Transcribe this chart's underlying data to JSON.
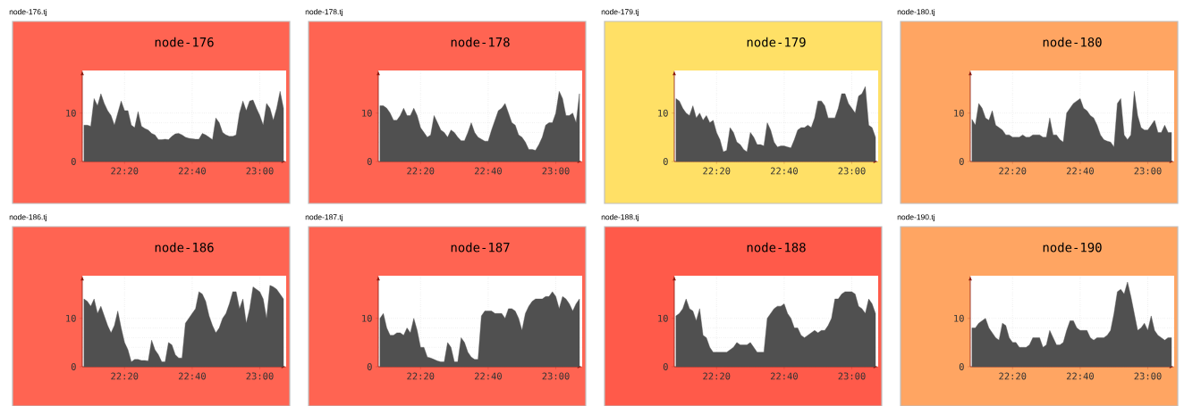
{
  "chart_data": [
    {
      "type": "area",
      "title": "node-176",
      "annotations": [
        "node-176.tj"
      ],
      "color": "#505050",
      "grid": true,
      "xlim": [
        22.125,
        23.13
      ],
      "ylim": [
        0,
        18.8
      ],
      "yticks": [
        0,
        10
      ],
      "xticks": [
        {
          "value": 22.3333,
          "label": "22:20"
        },
        {
          "value": 22.6667,
          "label": "22:40"
        },
        {
          "value": 23.0,
          "label": "23:00"
        }
      ],
      "x": [
        22.1333,
        22.15,
        22.1667,
        22.1833,
        22.2,
        22.2167,
        22.2333,
        22.25,
        22.2667,
        22.2833,
        22.3,
        22.3167,
        22.3333,
        22.35,
        22.3667,
        22.3833,
        22.4,
        22.4167,
        22.4333,
        22.45,
        22.4667,
        22.4833,
        22.5,
        22.5167,
        22.5333,
        22.55,
        22.5667,
        22.5833,
        22.6,
        22.6167,
        22.6333,
        22.65,
        22.6667,
        22.6833,
        22.7,
        22.7167,
        22.7333,
        22.75,
        22.7667,
        22.7833,
        22.8,
        22.8167,
        22.8333,
        22.85,
        22.8667,
        22.8833,
        22.9,
        22.9167,
        22.9333,
        22.95,
        22.9667,
        22.9833,
        23.0,
        23.0167,
        23.0333,
        23.05,
        23.0667,
        23.0833,
        23.1,
        23.1167
      ],
      "values": [
        7.5,
        7.5,
        7.3,
        13,
        11.5,
        14,
        12,
        10.5,
        9.5,
        7.5,
        10,
        12.5,
        10.5,
        10.5,
        7.5,
        7,
        10.3,
        7.3,
        6.8,
        6.5,
        5.8,
        5.5,
        4.5,
        4.5,
        4.6,
        4.5,
        5.2,
        5.7,
        5.8,
        5.5,
        5,
        4.8,
        4.7,
        4.6,
        4.6,
        5.8,
        5.5,
        5,
        4.5,
        9,
        8,
        6,
        5.5,
        5.2,
        5.2,
        5.5,
        10,
        12.5,
        10.5,
        12.5,
        12.7,
        11,
        9.5,
        7.5,
        12,
        11,
        8.5,
        11,
        14.5,
        11
      ]
    },
    {
      "type": "area",
      "title": "node-178",
      "annotations": [
        "node-178.tj"
      ],
      "color": "#505050",
      "grid": true,
      "xlim": [
        22.125,
        23.13
      ],
      "ylim": [
        0,
        18.8
      ],
      "yticks": [
        0,
        10
      ],
      "xticks": [
        {
          "value": 22.3333,
          "label": "22:20"
        },
        {
          "value": 22.6667,
          "label": "22:40"
        },
        {
          "value": 23.0,
          "label": "23:00"
        }
      ],
      "x": [
        22.1333,
        22.15,
        22.1667,
        22.1833,
        22.2,
        22.2167,
        22.2333,
        22.25,
        22.2667,
        22.2833,
        22.3,
        22.3167,
        22.3333,
        22.35,
        22.3667,
        22.3833,
        22.4,
        22.4167,
        22.4333,
        22.45,
        22.4667,
        22.4833,
        22.5,
        22.5167,
        22.5333,
        22.55,
        22.5667,
        22.5833,
        22.6,
        22.6167,
        22.6333,
        22.65,
        22.6667,
        22.6833,
        22.7,
        22.7167,
        22.7333,
        22.75,
        22.7667,
        22.7833,
        22.8,
        22.8167,
        22.8333,
        22.85,
        22.8667,
        22.8833,
        22.9,
        22.9167,
        22.9333,
        22.95,
        22.9667,
        22.9833,
        23.0,
        23.0167,
        23.0333,
        23.05,
        23.0667,
        23.0833,
        23.1,
        23.1167
      ],
      "values": [
        11.5,
        11.5,
        11,
        10,
        8.5,
        8.5,
        9.5,
        11,
        9.5,
        9.5,
        11,
        9.5,
        7,
        6,
        5,
        5.5,
        9.5,
        8,
        6.5,
        6,
        5,
        6.5,
        6,
        5,
        4.3,
        4.3,
        6,
        8,
        6,
        5,
        4.6,
        4.2,
        4.2,
        6.5,
        8.5,
        10.5,
        11,
        12,
        10,
        8,
        7.5,
        5.5,
        5,
        4,
        2.5,
        2.5,
        2.3,
        3.5,
        5,
        7.5,
        8,
        8,
        10,
        14.5,
        13,
        9.5,
        9.5,
        10,
        8,
        14
      ]
    },
    {
      "type": "area",
      "title": "node-179",
      "annotations": [
        "node-179.tj"
      ],
      "color": "#505050",
      "grid": true,
      "xlim": [
        22.125,
        23.13
      ],
      "ylim": [
        0,
        18.8
      ],
      "yticks": [
        0,
        10
      ],
      "xticks": [
        {
          "value": 22.3333,
          "label": "22:20"
        },
        {
          "value": 22.6667,
          "label": "22:40"
        },
        {
          "value": 23.0,
          "label": "23:00"
        }
      ],
      "x": [
        22.1333,
        22.15,
        22.1667,
        22.1833,
        22.2,
        22.2167,
        22.2333,
        22.25,
        22.2667,
        22.2833,
        22.3,
        22.3167,
        22.3333,
        22.35,
        22.3667,
        22.3833,
        22.4,
        22.4167,
        22.4333,
        22.45,
        22.4667,
        22.4833,
        22.5,
        22.5167,
        22.5333,
        22.55,
        22.5667,
        22.5833,
        22.6,
        22.6167,
        22.6333,
        22.65,
        22.6667,
        22.6833,
        22.7,
        22.7167,
        22.7333,
        22.75,
        22.7667,
        22.7833,
        22.8,
        22.8167,
        22.8333,
        22.85,
        22.8667,
        22.8833,
        22.9,
        22.9167,
        22.9333,
        22.95,
        22.9667,
        22.9833,
        23.0,
        23.0167,
        23.0333,
        23.05,
        23.0667,
        23.0833,
        23.1,
        23.1167
      ],
      "values": [
        13,
        12.5,
        11,
        10,
        9.5,
        11.5,
        9,
        10,
        8.5,
        9.5,
        8,
        8.5,
        6,
        4.5,
        2,
        2.3,
        7,
        6,
        4,
        3.5,
        2.5,
        2,
        6,
        5,
        3.5,
        3.5,
        3.2,
        8,
        6.5,
        4,
        3,
        3.2,
        3.2,
        3,
        2.8,
        4.5,
        6.5,
        7,
        7,
        7.5,
        7,
        9,
        12.5,
        12.5,
        11.5,
        9,
        9,
        9,
        11,
        14,
        14,
        12,
        11,
        10,
        13.5,
        14,
        15.5,
        7.5,
        7,
        5
      ]
    },
    {
      "type": "area",
      "title": "node-180",
      "annotations": [
        "node-180.tj"
      ],
      "color": "#505050",
      "grid": true,
      "xlim": [
        22.125,
        23.13
      ],
      "ylim": [
        0,
        18.8
      ],
      "yticks": [
        0,
        10
      ],
      "xticks": [
        {
          "value": 22.3333,
          "label": "22:20"
        },
        {
          "value": 22.6667,
          "label": "22:40"
        },
        {
          "value": 23.0,
          "label": "23:00"
        }
      ],
      "x": [
        22.1333,
        22.15,
        22.1667,
        22.1833,
        22.2,
        22.2167,
        22.2333,
        22.25,
        22.2667,
        22.2833,
        22.3,
        22.3167,
        22.3333,
        22.35,
        22.3667,
        22.3833,
        22.4,
        22.4167,
        22.4333,
        22.45,
        22.4667,
        22.4833,
        22.5,
        22.5167,
        22.5333,
        22.55,
        22.5667,
        22.5833,
        22.6,
        22.6167,
        22.6333,
        22.65,
        22.6667,
        22.6833,
        22.7,
        22.7167,
        22.7333,
        22.75,
        22.7667,
        22.7833,
        22.8,
        22.8167,
        22.8333,
        22.85,
        22.8667,
        22.8833,
        22.9,
        22.9167,
        22.9333,
        22.95,
        22.9667,
        22.9833,
        23.0,
        23.0167,
        23.0333,
        23.05,
        23.0667,
        23.0833,
        23.1,
        23.1167
      ],
      "values": [
        8.7,
        7.5,
        12,
        11,
        9,
        8.5,
        10.5,
        7.5,
        7,
        6.5,
        5.5,
        5.5,
        5,
        5,
        5,
        5.5,
        5,
        5,
        5.5,
        5.5,
        5.5,
        5,
        5,
        9,
        5.5,
        5.5,
        4.5,
        4,
        10,
        11,
        12,
        12.5,
        13,
        11,
        10.5,
        9.5,
        9,
        7.5,
        5.5,
        4.5,
        4.2,
        4,
        3,
        12,
        13,
        5.5,
        4.5,
        5.5,
        14.5,
        9.5,
        7,
        6.5,
        6.5,
        7.5,
        8.5,
        6,
        6,
        7.5,
        6,
        6
      ]
    },
    {
      "type": "area",
      "title": "node-186",
      "annotations": [
        "node-186.tj"
      ],
      "color": "#505050",
      "grid": true,
      "xlim": [
        22.125,
        23.13
      ],
      "ylim": [
        0,
        18.8
      ],
      "yticks": [
        0,
        10
      ],
      "xticks": [
        {
          "value": 22.3333,
          "label": "22:20"
        },
        {
          "value": 22.6667,
          "label": "22:40"
        },
        {
          "value": 23.0,
          "label": "23:00"
        }
      ],
      "x": [
        22.1333,
        22.15,
        22.1667,
        22.1833,
        22.2,
        22.2167,
        22.2333,
        22.25,
        22.2667,
        22.2833,
        22.3,
        22.3167,
        22.3333,
        22.35,
        22.3667,
        22.3833,
        22.4,
        22.4167,
        22.4333,
        22.45,
        22.4667,
        22.4833,
        22.5,
        22.5167,
        22.5333,
        22.55,
        22.5667,
        22.5833,
        22.6,
        22.6167,
        22.6333,
        22.65,
        22.6667,
        22.6833,
        22.7,
        22.7167,
        22.7333,
        22.75,
        22.7667,
        22.7833,
        22.8,
        22.8167,
        22.8333,
        22.85,
        22.8667,
        22.8833,
        22.9,
        22.9167,
        22.9333,
        22.95,
        22.9667,
        22.9833,
        23.0,
        23.0167,
        23.0333,
        23.05,
        23.0667,
        23.0833,
        23.1,
        23.1167
      ],
      "values": [
        14,
        13.5,
        12.5,
        14,
        11,
        12.5,
        10.5,
        8.5,
        7,
        8.5,
        11.5,
        8,
        5,
        3.5,
        1,
        1.5,
        1.5,
        1.3,
        1.3,
        1.2,
        5.5,
        3.5,
        2.5,
        1,
        1,
        5,
        4.5,
        2.5,
        1.8,
        1.8,
        9,
        10,
        11,
        12,
        15.5,
        15,
        13.5,
        10.5,
        8.5,
        7,
        8,
        10,
        11,
        13,
        15.5,
        15.5,
        12,
        14,
        9,
        12,
        16.5,
        16,
        15.5,
        14,
        10,
        16.8,
        16.5,
        16,
        15,
        14
      ]
    },
    {
      "type": "area",
      "title": "node-187",
      "annotations": [
        "node-187.tj"
      ],
      "color": "#505050",
      "grid": true,
      "xlim": [
        22.125,
        23.13
      ],
      "ylim": [
        0,
        18.8
      ],
      "yticks": [
        0,
        10
      ],
      "xticks": [
        {
          "value": 22.3333,
          "label": "22:20"
        },
        {
          "value": 22.6667,
          "label": "22:40"
        },
        {
          "value": 23.0,
          "label": "23:00"
        }
      ],
      "x": [
        22.1333,
        22.15,
        22.1667,
        22.1833,
        22.2,
        22.2167,
        22.2333,
        22.25,
        22.2667,
        22.2833,
        22.3,
        22.3167,
        22.3333,
        22.35,
        22.3667,
        22.3833,
        22.4,
        22.4167,
        22.4333,
        22.45,
        22.4667,
        22.4833,
        22.5,
        22.5167,
        22.5333,
        22.55,
        22.5667,
        22.5833,
        22.6,
        22.6167,
        22.6333,
        22.65,
        22.6667,
        22.6833,
        22.7,
        22.7167,
        22.7333,
        22.75,
        22.7667,
        22.7833,
        22.8,
        22.8167,
        22.8333,
        22.85,
        22.8667,
        22.8833,
        22.9,
        22.9167,
        22.9333,
        22.95,
        22.9667,
        22.9833,
        23.0,
        23.0167,
        23.0333,
        23.05,
        23.0667,
        23.0833,
        23.1,
        23.1167
      ],
      "values": [
        10,
        11,
        8,
        6.5,
        6.5,
        7,
        7,
        6.5,
        8,
        7,
        10,
        7.5,
        4,
        4,
        2,
        1.8,
        1.5,
        1.2,
        1,
        1,
        5,
        4,
        1,
        1,
        6,
        5,
        3,
        2,
        1.5,
        1.5,
        10.5,
        11.5,
        11.5,
        11.5,
        11,
        11,
        11,
        10,
        12,
        12,
        11.5,
        10,
        7.5,
        11,
        12.5,
        13.5,
        14,
        14,
        14,
        14.5,
        14.5,
        15.5,
        14.5,
        12,
        14.5,
        14,
        13,
        11.5,
        13,
        14
      ]
    },
    {
      "type": "area",
      "title": "node-188",
      "annotations": [
        "node-188.tj"
      ],
      "color": "#505050",
      "grid": true,
      "xlim": [
        22.125,
        23.13
      ],
      "ylim": [
        0,
        18.8
      ],
      "yticks": [
        0,
        10
      ],
      "xticks": [
        {
          "value": 22.3333,
          "label": "22:20"
        },
        {
          "value": 22.6667,
          "label": "22:40"
        },
        {
          "value": 23.0,
          "label": "23:00"
        }
      ],
      "x": [
        22.1333,
        22.15,
        22.1667,
        22.1833,
        22.2,
        22.2167,
        22.2333,
        22.25,
        22.2667,
        22.2833,
        22.3,
        22.3167,
        22.3333,
        22.35,
        22.3667,
        22.3833,
        22.4,
        22.4167,
        22.4333,
        22.45,
        22.4667,
        22.4833,
        22.5,
        22.5167,
        22.5333,
        22.55,
        22.5667,
        22.5833,
        22.6,
        22.6167,
        22.6333,
        22.65,
        22.6667,
        22.6833,
        22.7,
        22.7167,
        22.7333,
        22.75,
        22.7667,
        22.7833,
        22.8,
        22.8167,
        22.8333,
        22.85,
        22.8667,
        22.8833,
        22.9,
        22.9167,
        22.9333,
        22.95,
        22.9667,
        22.9833,
        23.0,
        23.0167,
        23.0333,
        23.05,
        23.0667,
        23.0833,
        23.1,
        23.1167
      ],
      "values": [
        10.5,
        11,
        12,
        14,
        12,
        11.5,
        9.5,
        12,
        6.5,
        6,
        4,
        3,
        3,
        3,
        3,
        3,
        3.5,
        4,
        5,
        4.5,
        4.5,
        4.5,
        5,
        4,
        3,
        3,
        3,
        10,
        11,
        12,
        12.5,
        12.5,
        13,
        11,
        10,
        8,
        8,
        6.5,
        6,
        6.5,
        7,
        7.5,
        7,
        7.5,
        7.5,
        8.5,
        10,
        14,
        14,
        15,
        15.5,
        15.5,
        15.5,
        15,
        12.5,
        12,
        11,
        14,
        13,
        11
      ]
    },
    {
      "type": "area",
      "title": "node-190",
      "annotations": [
        "node-190.tj"
      ],
      "color": "#505050",
      "grid": true,
      "xlim": [
        22.125,
        23.13
      ],
      "ylim": [
        0,
        18.8
      ],
      "yticks": [
        0,
        10
      ],
      "xticks": [
        {
          "value": 22.3333,
          "label": "22:20"
        },
        {
          "value": 22.6667,
          "label": "22:40"
        },
        {
          "value": 23.0,
          "label": "23:00"
        }
      ],
      "x": [
        22.1333,
        22.15,
        22.1667,
        22.1833,
        22.2,
        22.2167,
        22.2333,
        22.25,
        22.2667,
        22.2833,
        22.3,
        22.3167,
        22.3333,
        22.35,
        22.3667,
        22.3833,
        22.4,
        22.4167,
        22.4333,
        22.45,
        22.4667,
        22.4833,
        22.5,
        22.5167,
        22.5333,
        22.55,
        22.5667,
        22.5833,
        22.6,
        22.6167,
        22.6333,
        22.65,
        22.6667,
        22.6833,
        22.7,
        22.7167,
        22.7333,
        22.75,
        22.7667,
        22.7833,
        22.8,
        22.8167,
        22.8333,
        22.85,
        22.8667,
        22.8833,
        22.9,
        22.9167,
        22.9333,
        22.95,
        22.9667,
        22.9833,
        23.0,
        23.0167,
        23.0333,
        23.05,
        23.0667,
        23.0833,
        23.1,
        23.1167
      ],
      "values": [
        8,
        8,
        9,
        9.5,
        10,
        8,
        7,
        6,
        5.5,
        9,
        8.5,
        6,
        5,
        5,
        4,
        4,
        4,
        4.5,
        6,
        6,
        6,
        4,
        4.5,
        7.5,
        6,
        4.5,
        4.5,
        5,
        7.5,
        9.5,
        9.5,
        8,
        7.5,
        7.5,
        7.5,
        6,
        5.5,
        6,
        6,
        6,
        6.5,
        7.5,
        11,
        15.5,
        16,
        15,
        17.5,
        14.5,
        11,
        7.5,
        8,
        9,
        7.5,
        10.5,
        7.5,
        6.5,
        6,
        5.5,
        6,
        6
      ]
    }
  ]
}
